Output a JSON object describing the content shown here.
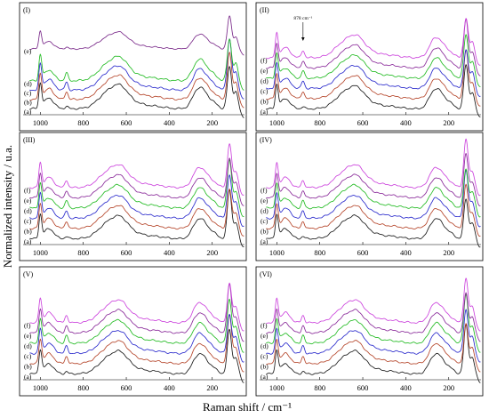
{
  "chart_data": {
    "type": "line",
    "xlabel": "Raman shift / cm⁻¹",
    "ylabel": "Normalized intensity / u.a.",
    "xlim": [
      1080,
      50
    ],
    "x_ticks": [
      1000,
      800,
      600,
      400,
      200
    ],
    "grid": false,
    "series_colors": {
      "(a)": "#1a1a1a",
      "(b)": "#b5452a",
      "(c)": "#2a2acc",
      "(d)": "#22bb22",
      "(e)": "#8a2a9a",
      "(f)": "#cc44dd",
      "(e)-panel-I": "#7a2a8a"
    },
    "panels": [
      {
        "id": "(I)",
        "series": [
          "(a)",
          "(b)",
          "(c)",
          "(d)",
          "(e)"
        ],
        "annotation": ""
      },
      {
        "id": "(II)",
        "series": [
          "(a)",
          "(b)",
          "(c)",
          "(d)",
          "(e)",
          "(f)"
        ],
        "annotation": "878 cm⁻¹"
      },
      {
        "id": "(III)",
        "series": [
          "(a)",
          "(b)",
          "(c)",
          "(d)",
          "(e)",
          "(f)"
        ],
        "annotation": ""
      },
      {
        "id": "(IV)",
        "series": [
          "(a)",
          "(b)",
          "(c)",
          "(d)",
          "(e)",
          "(f)"
        ],
        "annotation": ""
      },
      {
        "id": "(V)",
        "series": [
          "(a)",
          "(b)",
          "(c)",
          "(d)",
          "(e)",
          "(f)"
        ],
        "annotation": ""
      },
      {
        "id": "(VI)",
        "series": [
          "(a)",
          "(b)",
          "(c)",
          "(d)",
          "(e)",
          "(f)"
        ],
        "annotation": ""
      }
    ],
    "peaks_cm-1": [
      1000,
      878,
      680,
      620,
      270,
      240,
      200,
      120
    ]
  }
}
